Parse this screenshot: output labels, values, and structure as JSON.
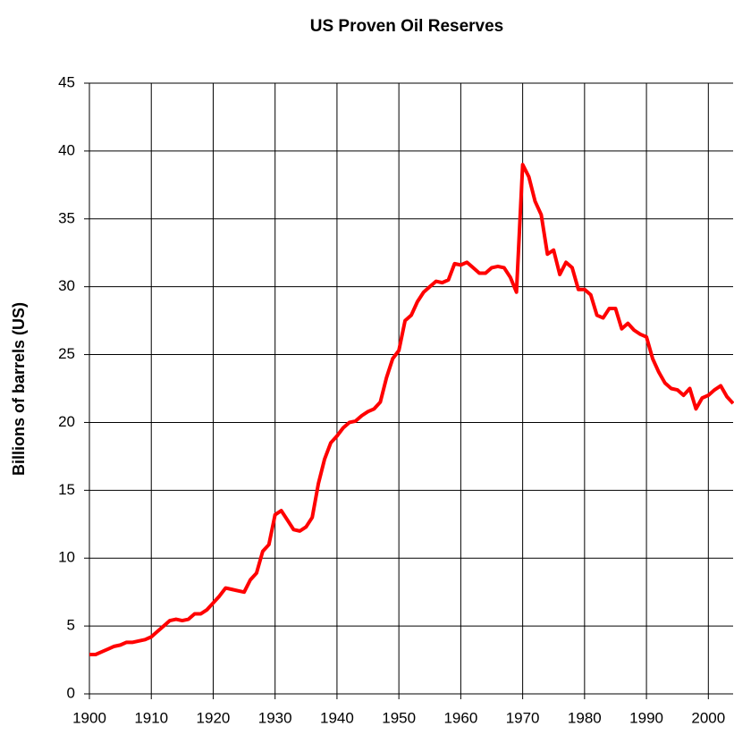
{
  "chart_data": {
    "type": "line",
    "title": "US Proven Oil Reserves",
    "y_label": "Billions of barrels (US)",
    "x": [
      1900,
      1901,
      1902,
      1903,
      1904,
      1905,
      1906,
      1907,
      1908,
      1909,
      1910,
      1911,
      1912,
      1913,
      1914,
      1915,
      1916,
      1917,
      1918,
      1919,
      1920,
      1921,
      1922,
      1923,
      1924,
      1925,
      1926,
      1927,
      1928,
      1929,
      1930,
      1931,
      1932,
      1933,
      1934,
      1935,
      1936,
      1937,
      1938,
      1939,
      1940,
      1941,
      1942,
      1943,
      1944,
      1945,
      1946,
      1947,
      1948,
      1949,
      1950,
      1951,
      1952,
      1953,
      1954,
      1955,
      1956,
      1957,
      1958,
      1959,
      1960,
      1961,
      1962,
      1963,
      1964,
      1965,
      1966,
      1967,
      1968,
      1969,
      1970,
      1971,
      1972,
      1973,
      1974,
      1975,
      1976,
      1977,
      1978,
      1979,
      1980,
      1981,
      1982,
      1983,
      1984,
      1985,
      1986,
      1987,
      1988,
      1989,
      1990,
      1991,
      1992,
      1993,
      1994,
      1995,
      1996,
      1997,
      1998,
      1999,
      2000,
      2001,
      2002,
      2003,
      2004
    ],
    "series": [
      {
        "name": "US Proven Oil Reserves",
        "color": "#ff0000",
        "values": [
          2.9,
          2.9,
          3.1,
          3.3,
          3.5,
          3.6,
          3.8,
          3.8,
          3.9,
          4.0,
          4.2,
          4.6,
          5.0,
          5.4,
          5.5,
          5.4,
          5.5,
          5.9,
          5.9,
          6.2,
          6.7,
          7.2,
          7.8,
          7.7,
          7.6,
          7.5,
          8.4,
          8.9,
          10.5,
          11.0,
          13.2,
          13.5,
          12.8,
          12.1,
          12.0,
          12.3,
          13.0,
          15.5,
          17.3,
          18.5,
          19.0,
          19.6,
          20.0,
          20.1,
          20.5,
          20.8,
          21.0,
          21.5,
          23.3,
          24.7,
          25.3,
          27.5,
          27.9,
          28.9,
          29.6,
          30.0,
          30.4,
          30.3,
          30.5,
          31.7,
          31.6,
          31.8,
          31.4,
          31.0,
          31.0,
          31.4,
          31.5,
          31.4,
          30.7,
          29.6,
          39.0,
          38.1,
          36.3,
          35.3,
          32.4,
          32.7,
          30.9,
          31.8,
          31.4,
          29.8,
          29.8,
          29.4,
          27.9,
          27.7,
          28.4,
          28.4,
          26.9,
          27.3,
          26.8,
          26.5,
          26.3,
          24.7,
          23.7,
          22.9,
          22.5,
          22.4,
          22.0,
          22.5,
          21.0,
          21.8,
          22.0,
          22.4,
          22.7,
          21.9,
          21.4
        ]
      }
    ],
    "xlim": [
      1900,
      2004
    ],
    "xticks": [
      1900,
      1910,
      1920,
      1930,
      1940,
      1950,
      1960,
      1970,
      1980,
      1990,
      2000
    ],
    "ylim": [
      0,
      45
    ],
    "yticks": [
      0,
      5,
      10,
      15,
      20,
      25,
      30,
      35,
      40,
      45
    ],
    "grid": true
  }
}
